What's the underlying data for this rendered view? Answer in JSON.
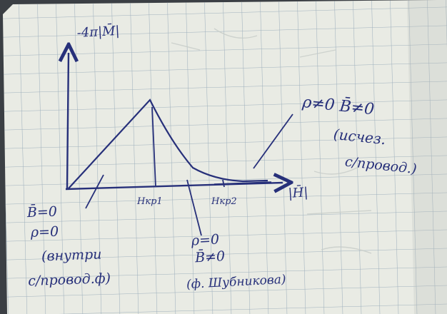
{
  "photo": {
    "paper_color": "#e9ebe4",
    "grid_color": "#9fb0bd",
    "ink_color": "#27307a"
  },
  "axes": {
    "y_label": "-4π|M̄|",
    "x_label": "|H̄|",
    "tick_1": "Hкр1",
    "tick_2": "Hкр2"
  },
  "annotations": {
    "left": [
      "B̄=0",
      "ρ=0",
      "(внутри",
      "с/провод.ф)"
    ],
    "middle": [
      "ρ=0",
      "B̄≠0",
      "(ф. Шубникова)"
    ],
    "right": [
      "ρ≠0   B̄≠0",
      "(исчез.",
      "с/провод.)"
    ]
  }
}
